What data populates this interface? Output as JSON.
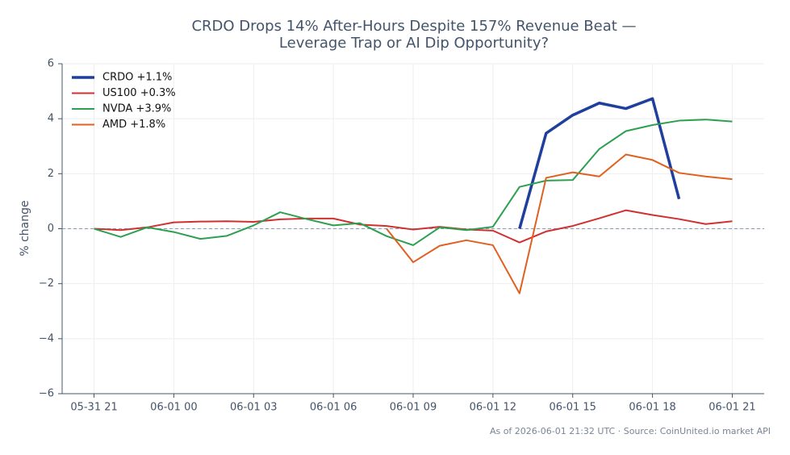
{
  "chart_data": {
    "type": "line",
    "title": "CRDO Drops 14% After-Hours Despite 157% Revenue Beat —",
    "subtitle": "Leverage Trap or AI Dip Opportunity?",
    "y_label": "% change",
    "footnote": "As of 2026-06-01 21:32 UTC · Source: CoinUnited.io market API",
    "x": [
      "05-31 21",
      "05-31 22",
      "05-31 23",
      "06-01 00",
      "06-01 01",
      "06-01 02",
      "06-01 03",
      "06-01 04",
      "06-01 05",
      "06-01 06",
      "06-01 07",
      "06-01 08",
      "06-01 09",
      "06-01 10",
      "06-01 11",
      "06-01 12",
      "06-01 13",
      "06-01 14",
      "06-01 15",
      "06-01 16",
      "06-01 17",
      "06-01 18",
      "06-01 19",
      "06-01 20",
      "06-01 21"
    ],
    "xticks": [
      "05-31 21",
      "06-01 00",
      "06-01 03",
      "06-01 06",
      "06-01 09",
      "06-01 12",
      "06-01 15",
      "06-01 18",
      "06-01 21"
    ],
    "ylim": [
      -6,
      6
    ],
    "yticks": [
      {
        "value": -6,
        "label": "−6"
      },
      {
        "value": -4,
        "label": "−4"
      },
      {
        "value": -2,
        "label": "−2"
      },
      0,
      2,
      4,
      6
    ],
    "grid": true,
    "legend": "upper left",
    "series": [
      {
        "name": "CRDO +1.1%",
        "color": "#1f3f9c",
        "values": [
          null,
          null,
          null,
          null,
          null,
          null,
          null,
          null,
          null,
          null,
          null,
          null,
          null,
          null,
          null,
          null,
          0,
          3.47,
          4.13,
          4.57,
          4.37,
          4.73,
          1.08,
          null,
          null
        ]
      },
      {
        "name": "US100 +0.3%",
        "color": "#d03030",
        "values": [
          0,
          -0.05,
          0.05,
          0.23,
          0.26,
          0.27,
          0.25,
          0.34,
          0.37,
          0.37,
          0.15,
          0.1,
          -0.03,
          0.07,
          -0.03,
          -0.07,
          -0.5,
          -0.1,
          0.1,
          0.38,
          0.67,
          0.5,
          0.35,
          0.17,
          0.27
        ]
      },
      {
        "name": "NVDA +3.9%",
        "color": "#2ca050",
        "values": [
          0,
          -0.3,
          0.05,
          -0.12,
          -0.37,
          -0.26,
          0.12,
          0.6,
          0.35,
          0.12,
          0.2,
          -0.27,
          -0.6,
          0.05,
          -0.05,
          0.07,
          1.52,
          1.75,
          1.77,
          2.9,
          3.55,
          3.77,
          3.93,
          3.97,
          3.9
        ]
      },
      {
        "name": "AMD +1.8%",
        "color": "#e06020",
        "values": [
          null,
          null,
          null,
          null,
          null,
          null,
          null,
          null,
          null,
          null,
          null,
          0,
          -1.22,
          -0.62,
          -0.42,
          -0.6,
          -2.35,
          1.85,
          2.05,
          1.9,
          2.7,
          2.5,
          2.03,
          1.9,
          1.8
        ]
      }
    ]
  }
}
